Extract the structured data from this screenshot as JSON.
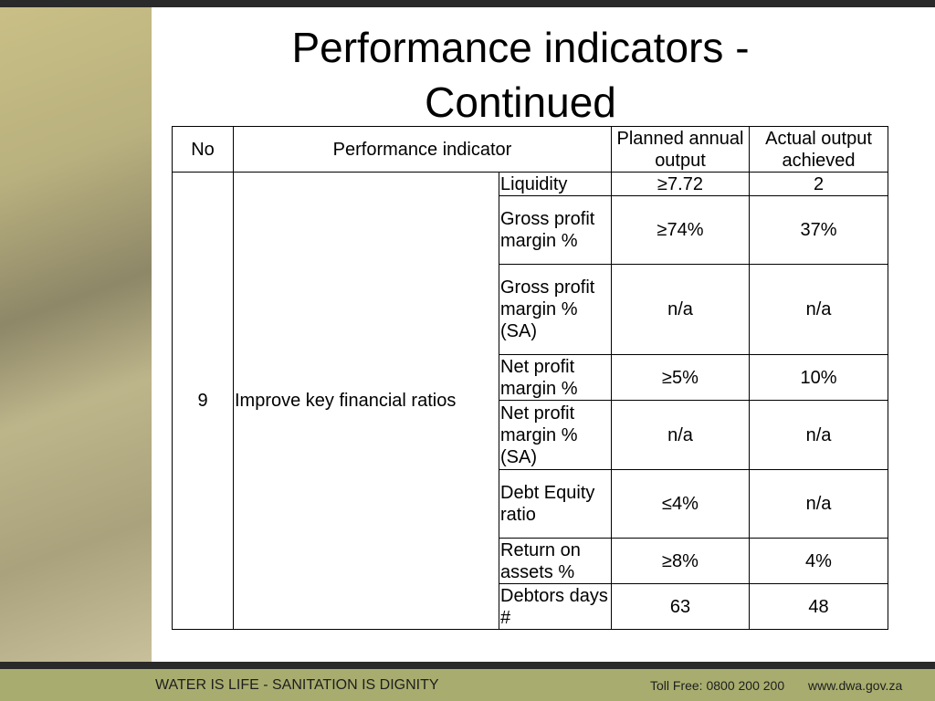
{
  "header": {
    "title": "Performance indicators - Continued"
  },
  "table": {
    "columns": [
      "No",
      "Performance indicator",
      "Planned annual output",
      "Actual output achieved"
    ],
    "no": "9",
    "indicator": "Improve key financial ratios",
    "rows": [
      [
        "Liquidity",
        "≥7.72",
        "2"
      ],
      [
        "Gross profit margin %",
        "≥74%",
        "37%"
      ],
      [
        "Gross profit margin % (SA)",
        "n/a",
        "n/a"
      ],
      [
        "Net profit margin %",
        "≥5%",
        "10%"
      ],
      [
        "Net profit margin % (SA)",
        "n/a",
        "n/a"
      ],
      [
        "Debt Equity ratio",
        "≤4%",
        "n/a"
      ],
      [
        "Return on assets %",
        "≥8%",
        "4%"
      ],
      [
        "Debtors days #",
        "63",
        "48"
      ]
    ]
  },
  "footer": {
    "slogan": "WATER IS LIFE - SANITATION IS DIGNITY",
    "toll_free": "Toll Free: 0800 200 200",
    "website": "www.dwa.gov.za"
  }
}
